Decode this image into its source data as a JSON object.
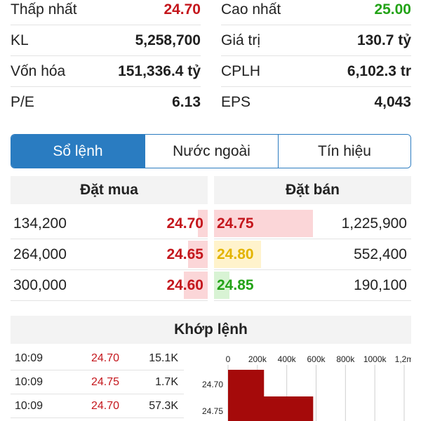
{
  "stats": {
    "left": [
      {
        "label": "Thấp nhất",
        "value": "24.70",
        "color": "red"
      },
      {
        "label": "KL",
        "value": "5,258,700",
        "color": ""
      },
      {
        "label": "Vốn hóa",
        "value": "151,336.4 tỷ",
        "color": ""
      },
      {
        "label": "P/E",
        "value": "6.13",
        "color": ""
      }
    ],
    "right": [
      {
        "label": "Cao nhất",
        "value": "25.00",
        "color": "green"
      },
      {
        "label": "Giá trị",
        "value": "130.7 tỷ",
        "color": ""
      },
      {
        "label": "CPLH",
        "value": "6,102.3 tr",
        "color": ""
      },
      {
        "label": "EPS",
        "value": "4,043",
        "color": ""
      }
    ]
  },
  "tabs": [
    {
      "label": "Sổ lệnh",
      "active": true
    },
    {
      "label": "Nước ngoài",
      "active": false
    },
    {
      "label": "Tín hiệu",
      "active": false
    }
  ],
  "order_book": {
    "buy_title": "Đặt mua",
    "sell_title": "Đặt bán",
    "buy": [
      {
        "volume": "134,200",
        "price": "24.70",
        "color": "red",
        "depth": 0.05
      },
      {
        "volume": "264,000",
        "price": "24.65",
        "color": "red",
        "depth": 0.1
      },
      {
        "volume": "300,000",
        "price": "24.60",
        "color": "red",
        "depth": 0.12
      }
    ],
    "sell": [
      {
        "price": "24.75",
        "volume": "1,225,900",
        "color": "red",
        "depth": 0.5
      },
      {
        "price": "24.80",
        "volume": "552,400",
        "color": "yellow",
        "depth": 0.24
      },
      {
        "price": "24.85",
        "volume": "190,100",
        "color": "green",
        "depth": 0.08
      }
    ]
  },
  "matched": {
    "title": "Khớp lệnh",
    "trades": [
      {
        "time": "10:09",
        "price": "24.70",
        "volume": "15.1K"
      },
      {
        "time": "10:09",
        "price": "24.75",
        "volume": "1.7K"
      },
      {
        "time": "10:09",
        "price": "24.70",
        "volume": "57.3K"
      }
    ]
  },
  "colors": {
    "red": "#c4161c",
    "green": "#23a317",
    "yellow": "#e3b400",
    "accent": "#2a7cc1",
    "bar": "#a50a0a"
  },
  "chart_data": {
    "type": "bar",
    "orientation": "horizontal",
    "categories": [
      "24.70",
      "24.75"
    ],
    "values": [
      245000,
      580000
    ],
    "xlim": [
      0,
      1200000
    ],
    "x_ticks": [
      "0",
      "200k",
      "400k",
      "600k",
      "800k",
      "1000k",
      "1,2m"
    ],
    "grid": true
  }
}
